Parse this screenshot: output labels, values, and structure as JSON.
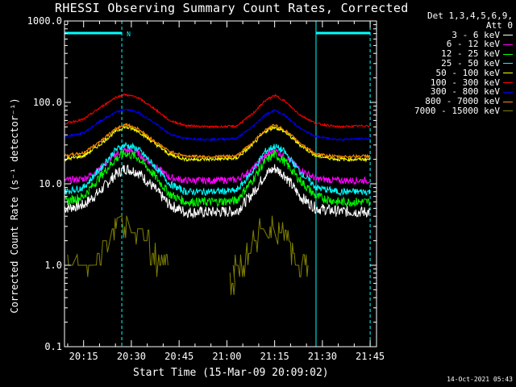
{
  "chart_data": {
    "type": "line",
    "title": "RHESSI Observing Summary Count Rates, Corrected",
    "xlabel": "Start Time (15-Mar-09 20:09:02)",
    "ylabel": "Corrected Count Rate (s⁻¹ detector⁻¹)",
    "yscale": "log",
    "ylim": [
      0.1,
      1000
    ],
    "xlim": [
      "20:09",
      "21:47"
    ],
    "x_ticks": [
      "20:15",
      "20:30",
      "20:45",
      "21:00",
      "21:15",
      "21:30",
      "21:45"
    ],
    "y_ticks": [
      "0.1",
      "1.0",
      "10.0",
      "100.0",
      "1000.0"
    ],
    "legend_header": [
      "Det 1,3,4,5,6,9,",
      "Att 0"
    ],
    "legend_position": "right",
    "grid": false,
    "attenuator_label": "N",
    "night_markers": {
      "solid_at": [
        "20:09",
        "21:28"
      ],
      "dashed_at": [
        "20:27",
        "21:45"
      ]
    },
    "bar_segments": [
      {
        "start": "20:09",
        "end": "20:27"
      },
      {
        "start": "21:28",
        "end": "21:45"
      }
    ],
    "series": [
      {
        "name": "3 - 6 keV",
        "color": "#ffffff",
        "x": [
          "20:09",
          "20:15",
          "20:20",
          "20:25",
          "20:28",
          "20:32",
          "20:37",
          "20:42",
          "20:47",
          "20:55",
          "21:03",
          "21:08",
          "21:12",
          "21:15",
          "21:18",
          "21:23",
          "21:28",
          "21:35",
          "21:45"
        ],
        "y": [
          5,
          5.5,
          8,
          13,
          15.5,
          14,
          9,
          5.5,
          4.5,
          4.5,
          4.6,
          7.5,
          13,
          15.5,
          13,
          7,
          5,
          4.6,
          4.5
        ]
      },
      {
        "name": "6 - 12 keV",
        "color": "#ff00ff",
        "x": [
          "20:09",
          "20:15",
          "20:20",
          "20:25",
          "20:28",
          "20:32",
          "20:37",
          "20:42",
          "20:47",
          "20:55",
          "21:03",
          "21:08",
          "21:12",
          "21:15",
          "21:18",
          "21:23",
          "21:28",
          "21:35",
          "21:45"
        ],
        "y": [
          11,
          11.5,
          15,
          23,
          26,
          24,
          17,
          12,
          11,
          11,
          11.2,
          15,
          22,
          26,
          22,
          15,
          11.5,
          11,
          11
        ]
      },
      {
        "name": "12 - 25 keV",
        "color": "#00ff00",
        "x": [
          "20:09",
          "20:15",
          "20:20",
          "20:25",
          "20:28",
          "20:32",
          "20:37",
          "20:42",
          "20:47",
          "20:55",
          "21:03",
          "21:08",
          "21:12",
          "21:15",
          "21:18",
          "21:23",
          "21:28",
          "21:35",
          "21:45"
        ],
        "y": [
          6,
          7,
          12,
          20,
          24,
          21,
          13,
          7.5,
          6,
          6,
          6.2,
          11,
          19,
          23,
          19,
          11,
          7,
          6,
          6
        ]
      },
      {
        "name": "25 - 50 keV",
        "color": "#00ffff",
        "x": [
          "20:09",
          "20:15",
          "20:20",
          "20:25",
          "20:28",
          "20:32",
          "20:37",
          "20:42",
          "20:47",
          "20:55",
          "21:03",
          "21:08",
          "21:12",
          "21:15",
          "21:18",
          "21:23",
          "21:28",
          "21:35",
          "21:45"
        ],
        "y": [
          8,
          9,
          15,
          26,
          30,
          27,
          17,
          10,
          8,
          8,
          8.2,
          14,
          25,
          29,
          25,
          14,
          9,
          8,
          8
        ]
      },
      {
        "name": "50 - 100 keV",
        "color": "#ffff00",
        "x": [
          "20:09",
          "20:15",
          "20:20",
          "20:25",
          "20:28",
          "20:32",
          "20:37",
          "20:42",
          "20:47",
          "20:55",
          "21:03",
          "21:08",
          "21:12",
          "21:15",
          "21:18",
          "21:23",
          "21:28",
          "21:35",
          "21:45"
        ],
        "y": [
          20,
          22,
          30,
          44,
          50,
          45,
          32,
          23,
          20,
          20,
          20.5,
          30,
          44,
          50,
          44,
          30,
          22,
          20,
          20
        ]
      },
      {
        "name": "100 - 300 keV",
        "color": "#ff0000",
        "x": [
          "20:09",
          "20:15",
          "20:20",
          "20:25",
          "20:28",
          "20:32",
          "20:37",
          "20:42",
          "20:47",
          "20:55",
          "21:03",
          "21:08",
          "21:12",
          "21:15",
          "21:18",
          "21:23",
          "21:28",
          "21:35",
          "21:45"
        ],
        "y": [
          55,
          62,
          85,
          115,
          125,
          115,
          85,
          60,
          52,
          50,
          51,
          72,
          105,
          122,
          105,
          70,
          55,
          50,
          52
        ]
      },
      {
        "name": "300 - 800 keV",
        "color": "#0000ff",
        "x": [
          "20:09",
          "20:15",
          "20:20",
          "20:25",
          "20:28",
          "20:32",
          "20:37",
          "20:42",
          "20:47",
          "20:55",
          "21:03",
          "21:08",
          "21:12",
          "21:15",
          "21:18",
          "21:23",
          "21:28",
          "21:35",
          "21:45"
        ],
        "y": [
          38,
          42,
          58,
          75,
          82,
          76,
          57,
          41,
          36,
          35,
          36,
          50,
          70,
          80,
          70,
          48,
          38,
          35,
          36
        ]
      },
      {
        "name": "800 - 7000 keV",
        "color": "#ff8c00",
        "x": [
          "20:09",
          "20:15",
          "20:20",
          "20:25",
          "20:28",
          "20:32",
          "20:37",
          "20:42",
          "20:47",
          "20:55",
          "21:03",
          "21:08",
          "21:12",
          "21:15",
          "21:18",
          "21:23",
          "21:28",
          "21:35",
          "21:45"
        ],
        "y": [
          22,
          24,
          33,
          47,
          54,
          48,
          34,
          25,
          22,
          21.5,
          22,
          32,
          46,
          53,
          46,
          32,
          23,
          21.5,
          22
        ]
      },
      {
        "name": "7000 - 15000 keV",
        "color": "#808000",
        "x": [
          "20:10",
          "20:13",
          "20:16",
          "20:19",
          "20:21",
          "20:24",
          "20:27",
          "20:30",
          "20:32",
          "20:34",
          "20:36",
          "20:38",
          "20:40",
          "21:01",
          "21:02",
          "21:04",
          "21:06",
          "21:08",
          "21:10",
          "21:13",
          "21:16",
          "21:18",
          "21:20",
          "21:22",
          "21:24"
        ],
        "y": [
          1.0,
          1.0,
          1.0,
          1.4,
          2.0,
          2.8,
          3.0,
          2.5,
          2.8,
          2.0,
          1.4,
          1.0,
          1.0,
          0.6,
          1.0,
          1.0,
          1.4,
          2.0,
          2.8,
          3.0,
          2.5,
          2.0,
          1.4,
          1.0,
          1.0
        ]
      }
    ]
  },
  "footer": {
    "timestamp": "14-Oct-2021 05:43"
  }
}
